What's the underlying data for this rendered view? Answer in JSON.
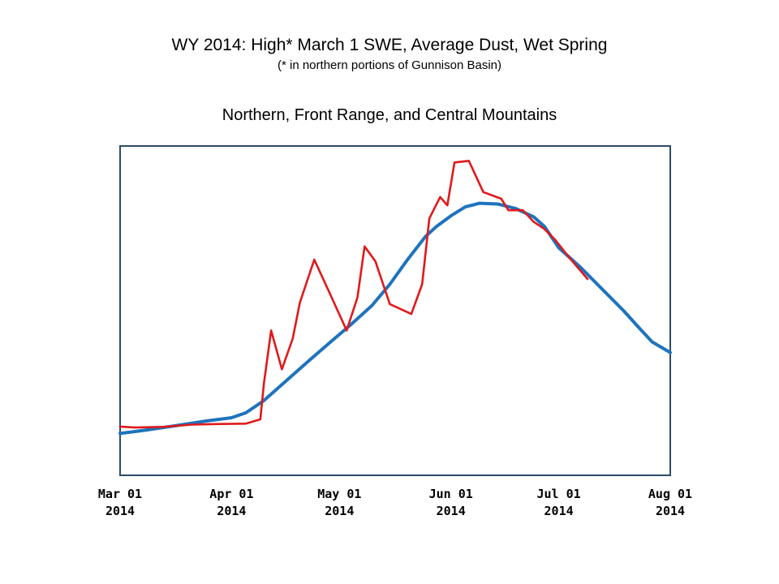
{
  "header": {
    "title": "WY 2014: High* March 1 SWE, Average Dust, Wet Spring",
    "subtitle": "(* in northern portions of Gunnison Basin)"
  },
  "chart_data": {
    "type": "line",
    "title": "Northern, Front Range, and Central Mountains",
    "xlabel": "",
    "ylabel": "",
    "x_range": [
      "2014-03-01",
      "2014-08-01"
    ],
    "y_range": [
      0,
      100
    ],
    "grid": false,
    "legend": "none",
    "x_ticks": [
      {
        "date": "2014-03-01",
        "line1": "Mar 01",
        "line2": "2014"
      },
      {
        "date": "2014-04-01",
        "line1": "Apr 01",
        "line2": "2014"
      },
      {
        "date": "2014-05-01",
        "line1": "May 01",
        "line2": "2014"
      },
      {
        "date": "2014-06-01",
        "line1": "Jun 01",
        "line2": "2014"
      },
      {
        "date": "2014-07-01",
        "line1": "Jul 01",
        "line2": "2014"
      },
      {
        "date": "2014-08-01",
        "line1": "Aug 01",
        "line2": "2014"
      }
    ],
    "series": [
      {
        "color": "#1f73bd",
        "points": [
          [
            "2014-03-01",
            12.7
          ],
          [
            "2014-03-08",
            13.7
          ],
          [
            "2014-03-16",
            15.0
          ],
          [
            "2014-03-25",
            16.5
          ],
          [
            "2014-04-01",
            17.5
          ],
          [
            "2014-04-05",
            19.0
          ],
          [
            "2014-04-10",
            22.7
          ],
          [
            "2014-04-16",
            28.5
          ],
          [
            "2014-04-22",
            34.3
          ],
          [
            "2014-04-28",
            40.0
          ],
          [
            "2014-05-04",
            45.6
          ],
          [
            "2014-05-10",
            51.5
          ],
          [
            "2014-05-15",
            58.0
          ],
          [
            "2014-05-20",
            65.6
          ],
          [
            "2014-05-25",
            72.6
          ],
          [
            "2014-05-28",
            75.6
          ],
          [
            "2014-06-01",
            78.8
          ],
          [
            "2014-06-05",
            81.5
          ],
          [
            "2014-06-09",
            82.6
          ],
          [
            "2014-06-14",
            82.4
          ],
          [
            "2014-06-19",
            81.0
          ],
          [
            "2014-06-24",
            78.5
          ],
          [
            "2014-06-27",
            75.6
          ],
          [
            "2014-07-01",
            69.1
          ],
          [
            "2014-07-07",
            63.2
          ],
          [
            "2014-07-13",
            56.6
          ],
          [
            "2014-07-19",
            50.0
          ],
          [
            "2014-07-24",
            44.0
          ],
          [
            "2014-07-27",
            40.5
          ],
          [
            "2014-08-01",
            37.3
          ]
        ]
      },
      {
        "color": "#e0191b",
        "points": [
          [
            "2014-03-01",
            14.8
          ],
          [
            "2014-03-05",
            14.5
          ],
          [
            "2014-03-13",
            14.7
          ],
          [
            "2014-03-21",
            15.4
          ],
          [
            "2014-03-29",
            15.6
          ],
          [
            "2014-04-05",
            15.7
          ],
          [
            "2014-04-09",
            17.0
          ],
          [
            "2014-04-10",
            28.0
          ],
          [
            "2014-04-12",
            44.0
          ],
          [
            "2014-04-15",
            32.2
          ],
          [
            "2014-04-18",
            41.5
          ],
          [
            "2014-04-20",
            52.5
          ],
          [
            "2014-04-24",
            65.5
          ],
          [
            "2014-04-28",
            56.0
          ],
          [
            "2014-05-03",
            44.0
          ],
          [
            "2014-05-06",
            54.0
          ],
          [
            "2014-05-08",
            69.5
          ],
          [
            "2014-05-11",
            65.0
          ],
          [
            "2014-05-15",
            52.0
          ],
          [
            "2014-05-21",
            49.0
          ],
          [
            "2014-05-24",
            58.0
          ],
          [
            "2014-05-26",
            78.0
          ],
          [
            "2014-05-29",
            84.5
          ],
          [
            "2014-05-31",
            82.0
          ],
          [
            "2014-06-02",
            95.0
          ],
          [
            "2014-06-06",
            95.5
          ],
          [
            "2014-06-10",
            86.0
          ],
          [
            "2014-06-15",
            84.0
          ],
          [
            "2014-06-17",
            80.5
          ],
          [
            "2014-06-21",
            80.5
          ],
          [
            "2014-06-24",
            77.0
          ],
          [
            "2014-06-27",
            74.8
          ],
          [
            "2014-06-30",
            71.5
          ],
          [
            "2014-07-04",
            66.0
          ],
          [
            "2014-07-09",
            59.6
          ]
        ]
      }
    ]
  }
}
